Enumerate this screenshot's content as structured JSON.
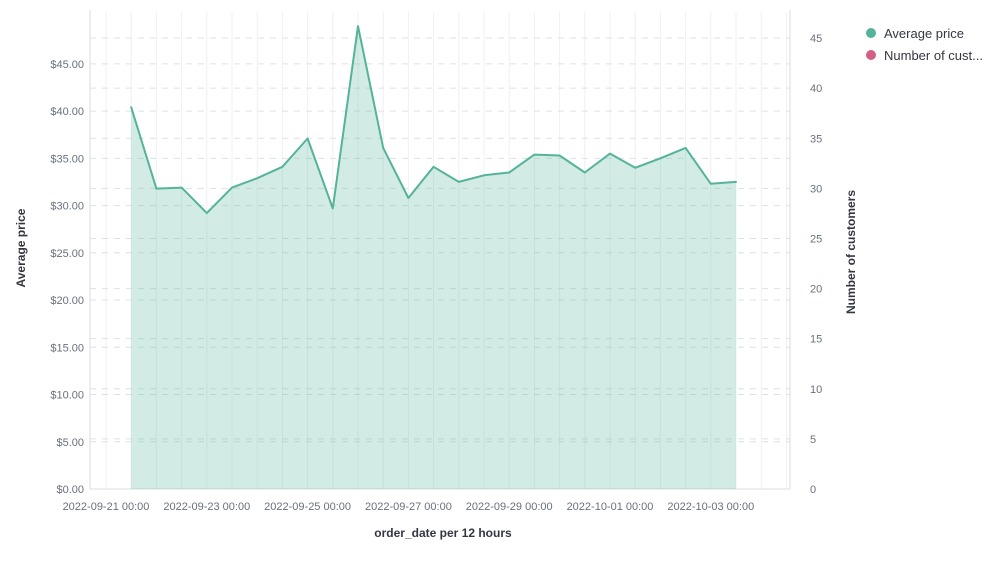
{
  "legend": {
    "items": [
      {
        "label": "Average price",
        "color": "#54B399"
      },
      {
        "label": "Number of cust...",
        "color": "#D36086"
      }
    ]
  },
  "chart_data": {
    "type": "area",
    "title": "",
    "xlabel": "order_date per 12 hours",
    "ylabel_left": "Average price",
    "ylabel_right": "Number of customers",
    "legend_position": "top-right",
    "grid": true,
    "x": [
      "2022-09-21 12:00",
      "2022-09-22 00:00",
      "2022-09-22 12:00",
      "2022-09-23 00:00",
      "2022-09-23 12:00",
      "2022-09-24 00:00",
      "2022-09-24 12:00",
      "2022-09-25 00:00",
      "2022-09-25 12:00",
      "2022-09-26 00:00",
      "2022-09-26 12:00",
      "2022-09-27 00:00",
      "2022-09-27 12:00",
      "2022-09-28 00:00",
      "2022-09-28 12:00",
      "2022-09-29 00:00",
      "2022-09-29 12:00",
      "2022-09-30 00:00",
      "2022-09-30 12:00",
      "2022-10-01 00:00",
      "2022-10-01 12:00",
      "2022-10-02 00:00",
      "2022-10-02 12:00",
      "2022-10-03 00:00",
      "2022-10-03 12:00"
    ],
    "series": [
      {
        "name": "Average price",
        "axis": "left",
        "color": "#54B399",
        "fill": "rgba(84,179,153,0.26)",
        "values": [
          40.4,
          31.8,
          31.9,
          29.2,
          31.9,
          32.9,
          34.1,
          37.1,
          29.7,
          49.0,
          36.1,
          30.8,
          34.1,
          32.5,
          33.2,
          33.5,
          35.4,
          35.3,
          33.5,
          35.5,
          34.0,
          35.0,
          36.1,
          32.3,
          32.5
        ]
      },
      {
        "name": "Number of customers",
        "axis": "right",
        "color": "#D36086",
        "values": []
      }
    ],
    "x_tick_labels": [
      "2022-09-21 00:00",
      "2022-09-23 00:00",
      "2022-09-25 00:00",
      "2022-09-27 00:00",
      "2022-09-29 00:00",
      "2022-10-01 00:00",
      "2022-10-03 00:00"
    ],
    "y_left_tick_values": [
      0,
      5,
      10,
      15,
      20,
      25,
      30,
      35,
      40,
      45
    ],
    "y_left_tick_labels": [
      "$0.00",
      "$5.00",
      "$10.00",
      "$15.00",
      "$20.00",
      "$25.00",
      "$30.00",
      "$35.00",
      "$40.00",
      "$45.00"
    ],
    "y_right_tick_values": [
      0,
      5,
      10,
      15,
      20,
      25,
      30,
      35,
      40,
      45
    ],
    "y_right_tick_labels": [
      "0",
      "5",
      "10",
      "15",
      "20",
      "25",
      "30",
      "35",
      "40",
      "45"
    ],
    "ylim_left": [
      0,
      50.7
    ],
    "ylim_right": [
      0,
      47.8
    ],
    "colors": {
      "gridline_vertical": "#eef0f3",
      "gridline_dashed": "#dde1e6",
      "axis_line": "#d9dee5",
      "tick_text": "#69707d",
      "title_text": "#343741"
    }
  }
}
